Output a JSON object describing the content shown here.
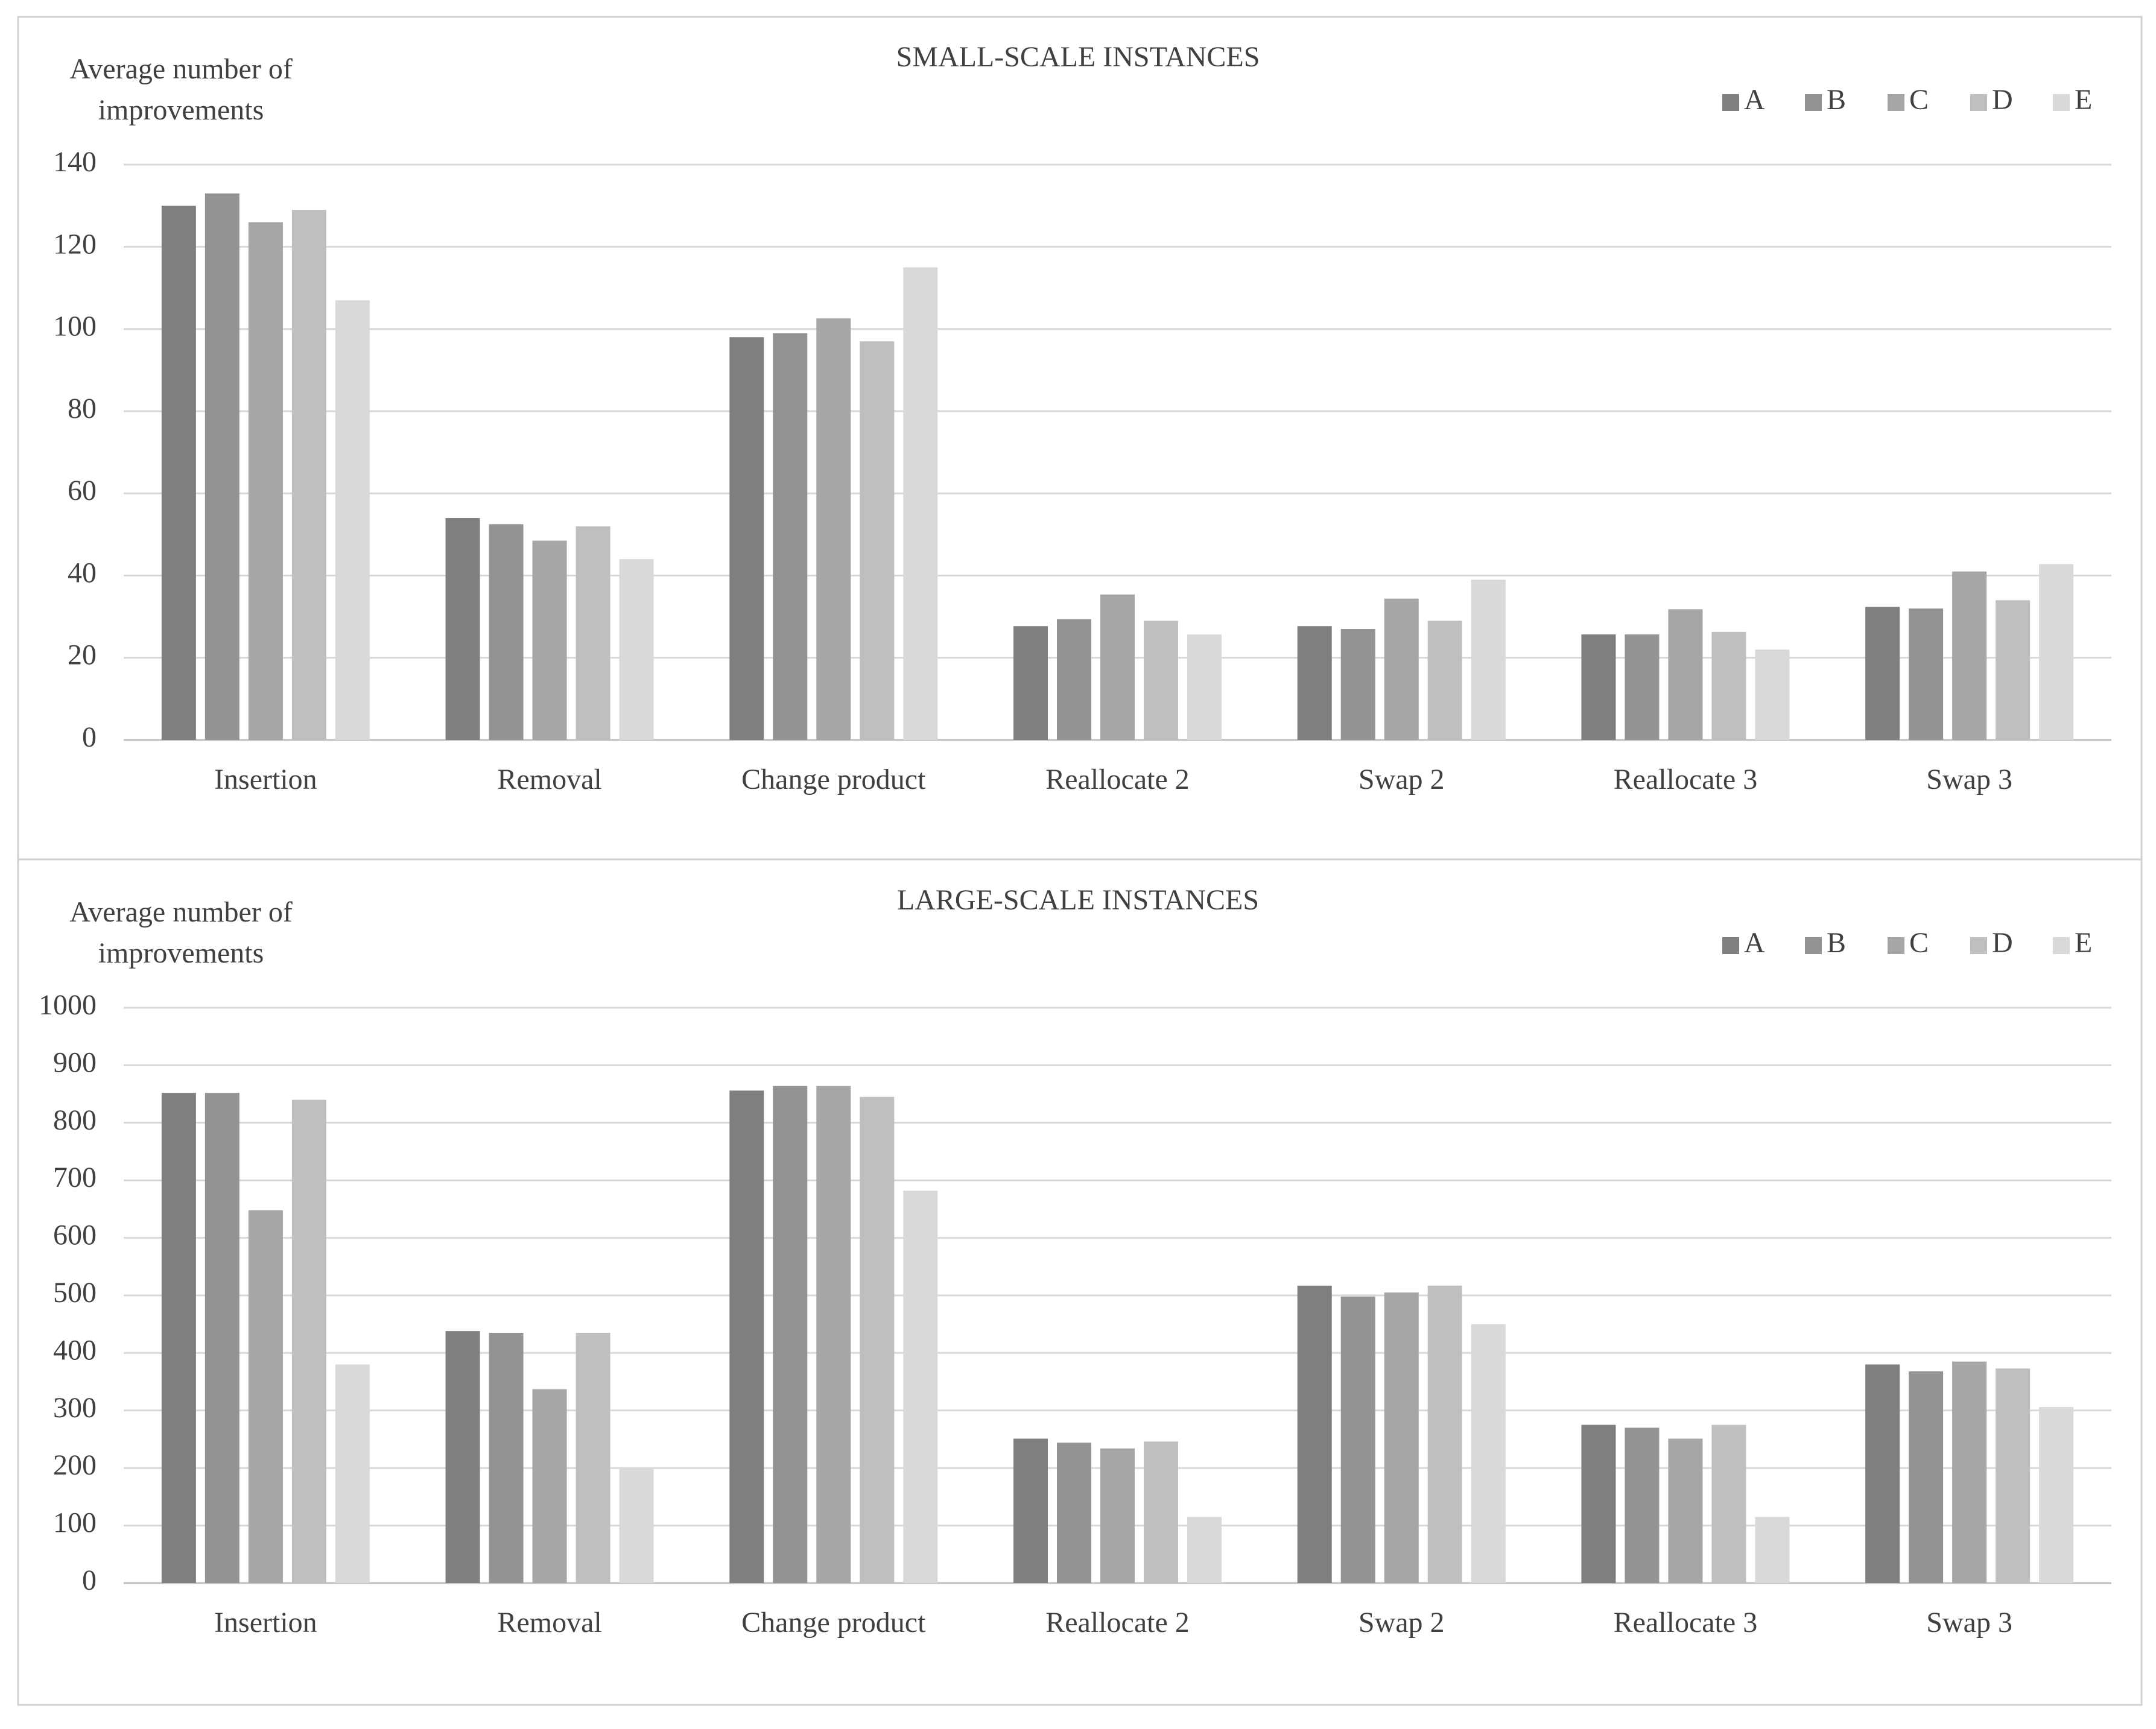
{
  "chart_data": [
    {
      "type": "bar",
      "title": "SMALL-SCALE INSTANCES",
      "y_label": [
        "Average number of",
        "improvements"
      ],
      "categories": [
        "Insertion",
        "Removal",
        "Change product",
        "Reallocate 2",
        "Swap 2",
        "Reallocate 3",
        "Swap 3"
      ],
      "series": [
        {
          "name": "A",
          "color": "#7f7f7f",
          "values": [
            130,
            54,
            98,
            27.7,
            27.7,
            25.7,
            32.4
          ]
        },
        {
          "name": "B",
          "color": "#939393",
          "values": [
            133,
            52.5,
            99,
            29.4,
            27,
            25.7,
            32
          ]
        },
        {
          "name": "C",
          "color": "#a6a6a6",
          "values": [
            126,
            48.5,
            102.6,
            35.4,
            34.4,
            31.8,
            41
          ]
        },
        {
          "name": "D",
          "color": "#bfbfbf",
          "values": [
            129,
            52,
            97,
            29,
            29,
            26.3,
            34
          ]
        },
        {
          "name": "E",
          "color": "#d9d9d9",
          "values": [
            107,
            44,
            115,
            25.7,
            39,
            22,
            42.8
          ]
        }
      ],
      "ylim": [
        0,
        140
      ],
      "yticks": [
        0,
        20,
        40,
        60,
        80,
        100,
        120,
        140
      ],
      "grid": true,
      "legend": "upper right"
    },
    {
      "type": "bar",
      "title": "LARGE-SCALE INSTANCES",
      "y_label": [
        "Average number of",
        "improvements"
      ],
      "categories": [
        "Insertion",
        "Removal",
        "Change product",
        "Reallocate 2",
        "Swap 2",
        "Reallocate 3",
        "Swap 3"
      ],
      "series": [
        {
          "name": "A",
          "color": "#7f7f7f",
          "values": [
            852,
            438,
            856,
            251,
            517,
            275,
            380
          ]
        },
        {
          "name": "B",
          "color": "#939393",
          "values": [
            852,
            435,
            864,
            244,
            498,
            270,
            368
          ]
        },
        {
          "name": "C",
          "color": "#a6a6a6",
          "values": [
            648,
            337,
            864,
            234,
            505,
            251,
            385
          ]
        },
        {
          "name": "D",
          "color": "#bfbfbf",
          "values": [
            840,
            435,
            845,
            246,
            517,
            275,
            373
          ]
        },
        {
          "name": "E",
          "color": "#d9d9d9",
          "values": [
            380,
            199,
            682,
            115,
            450,
            115,
            306
          ]
        }
      ],
      "ylim": [
        0,
        1000
      ],
      "yticks": [
        0,
        100,
        200,
        300,
        400,
        500,
        600,
        700,
        800,
        900,
        1000
      ],
      "grid": true,
      "legend": "upper right"
    }
  ]
}
